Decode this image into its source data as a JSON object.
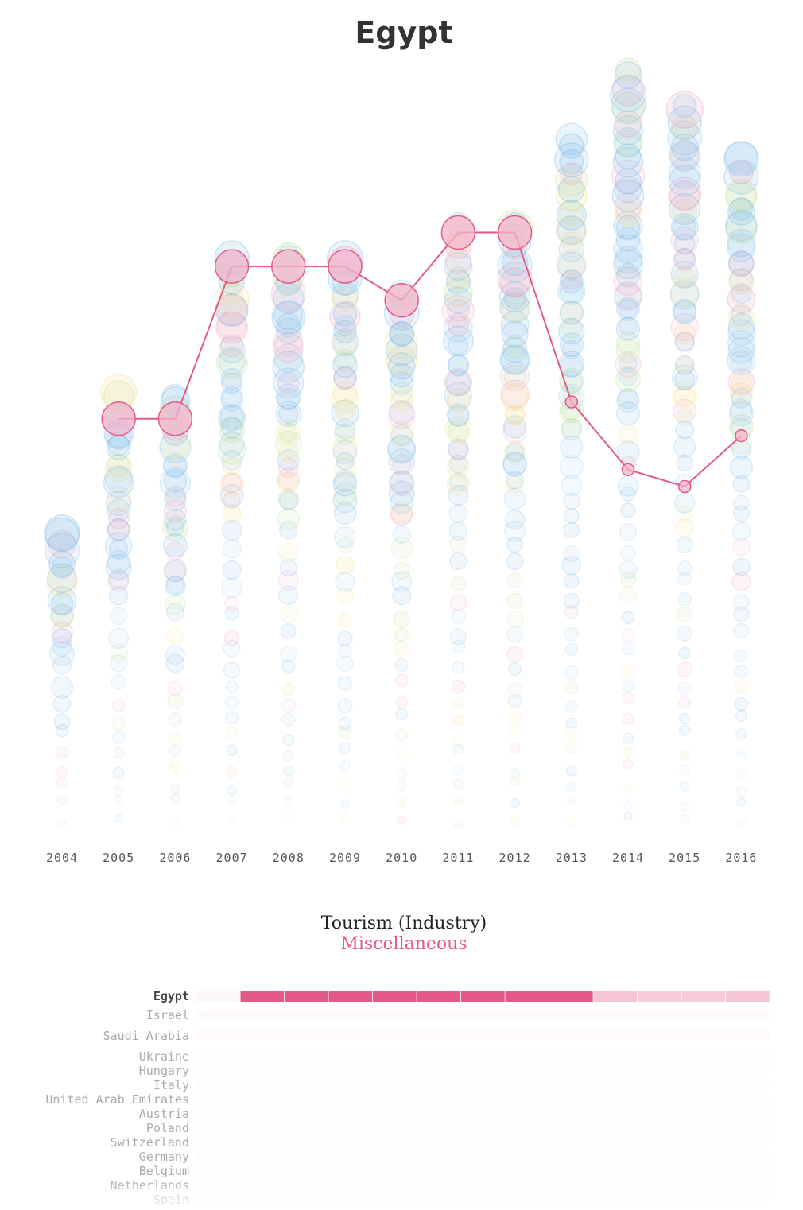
{
  "page": {
    "title": "Egypt"
  },
  "colors": {
    "highlight": "#e35a8a",
    "highlight_fill": "#f4b6cb",
    "bubble_blue": "#7ab8e6",
    "bubble_pink": "#ef9bb8",
    "bubble_green": "#b7dc8a",
    "bubble_yellow": "#f3d879",
    "row_label": "#aaaaaa",
    "row_label_selected": "#444444"
  },
  "chart_data": [
    {
      "type": "scatter",
      "title": "Egypt",
      "x": [
        "2004",
        "2005",
        "2006",
        "2007",
        "2008",
        "2009",
        "2010",
        "2011",
        "2012",
        "2013",
        "2014",
        "2015",
        "2016"
      ],
      "highlight_series": {
        "rank": [
          null,
          24,
          24,
          33,
          33,
          33,
          31,
          35,
          35,
          25,
          21,
          20,
          23
        ],
        "size": [
          null,
          "large",
          "large",
          "large",
          "large",
          "large",
          "large",
          "large",
          "large",
          "small",
          "small",
          "small",
          "small"
        ]
      },
      "background_bubbles": "faint ranked bubbles per year (mostly light blue, some pink, green, yellow)"
    },
    {
      "type": "heatmap",
      "title": "Tourism (Industry)",
      "subtitle": "Miscellaneous",
      "columns": [
        "2004",
        "2005",
        "2006",
        "2007",
        "2008",
        "2009",
        "2010",
        "2011",
        "2012",
        "2013",
        "2014",
        "2015",
        "2016"
      ],
      "rows": [
        {
          "label": "Egypt",
          "selected": true,
          "levels": [
            0.05,
            1,
            1,
            1,
            1,
            1,
            1,
            1,
            1,
            0.35,
            0.3,
            0.3,
            0.35
          ]
        },
        {
          "label": "Israel",
          "selected": false,
          "levels": [
            0.03,
            0.03,
            0.03,
            0.03,
            0.03,
            0.03,
            0.03,
            0.03,
            0.03,
            0.03,
            0.03,
            0.03,
            0.03
          ]
        },
        {
          "label": "Saudi Arabia",
          "selected": false,
          "levels": [
            0.03,
            0.03,
            0.03,
            0.03,
            0.03,
            0.03,
            0.03,
            0.03,
            0.03,
            0.03,
            0.03,
            0.03,
            0.03
          ]
        },
        {
          "label": "Ukraine",
          "selected": false,
          "levels": [
            0.02,
            0.02,
            0.02,
            0.02,
            0.02,
            0.02,
            0.02,
            0.02,
            0.02,
            0.02,
            0.02,
            0.02,
            0.02
          ]
        },
        {
          "label": "Hungary",
          "selected": false,
          "levels": [
            0.02,
            0.02,
            0.02,
            0.02,
            0.02,
            0.02,
            0.02,
            0.02,
            0.02,
            0.02,
            0.02,
            0.02,
            0.02
          ]
        },
        {
          "label": "Italy",
          "selected": false,
          "levels": [
            0.02,
            0.02,
            0.02,
            0.02,
            0.02,
            0.02,
            0.02,
            0.02,
            0.02,
            0.02,
            0.02,
            0.02,
            0.02
          ]
        },
        {
          "label": "United Arab Emirates",
          "selected": false,
          "levels": [
            0.02,
            0.02,
            0.02,
            0.02,
            0.02,
            0.02,
            0.02,
            0.02,
            0.02,
            0.02,
            0.02,
            0.02,
            0.02
          ]
        },
        {
          "label": "Austria",
          "selected": false,
          "levels": [
            0.02,
            0.02,
            0.02,
            0.02,
            0.02,
            0.02,
            0.02,
            0.02,
            0.02,
            0.02,
            0.02,
            0.02,
            0.02
          ]
        },
        {
          "label": "Poland",
          "selected": false,
          "levels": [
            0.02,
            0.02,
            0.02,
            0.02,
            0.02,
            0.02,
            0.02,
            0.02,
            0.02,
            0.02,
            0.02,
            0.02,
            0.02
          ]
        },
        {
          "label": "Switzerland",
          "selected": false,
          "levels": [
            0.02,
            0.02,
            0.02,
            0.02,
            0.02,
            0.02,
            0.02,
            0.02,
            0.02,
            0.02,
            0.02,
            0.02,
            0.02
          ]
        },
        {
          "label": "Germany",
          "selected": false,
          "levels": [
            0.02,
            0.02,
            0.02,
            0.02,
            0.02,
            0.02,
            0.02,
            0.02,
            0.02,
            0.02,
            0.02,
            0.02,
            0.02
          ]
        },
        {
          "label": "Belgium",
          "selected": false,
          "levels": [
            0.02,
            0.02,
            0.02,
            0.02,
            0.02,
            0.02,
            0.02,
            0.02,
            0.02,
            0.02,
            0.02,
            0.02,
            0.02
          ]
        },
        {
          "label": "Netherlands",
          "selected": false,
          "levels": [
            0.02,
            0.02,
            0.02,
            0.02,
            0.02,
            0.02,
            0.02,
            0.02,
            0.02,
            0.02,
            0.02,
            0.02,
            0.02
          ]
        },
        {
          "label": "Spain",
          "selected": false,
          "levels": [
            0.02,
            0.02,
            0.02,
            0.02,
            0.02,
            0.02,
            0.02,
            0.02,
            0.02,
            0.02,
            0.02,
            0.02,
            0.02
          ]
        }
      ]
    }
  ]
}
